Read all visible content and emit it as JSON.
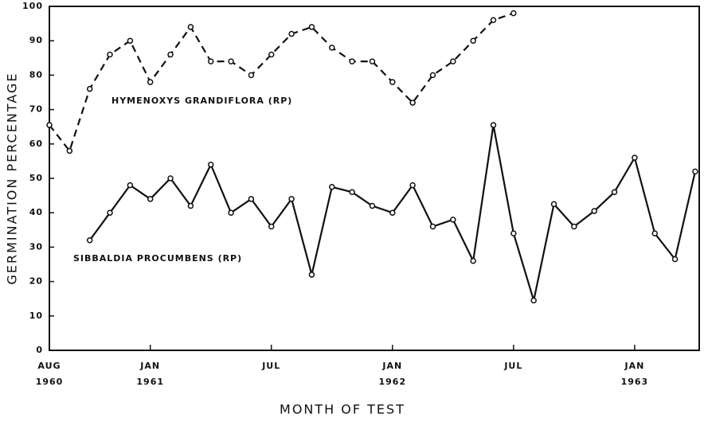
{
  "chart_data": {
    "type": "line",
    "y_label": "GERMINATION PERCENTAGE",
    "x_label": "MONTH OF TEST",
    "xlim": [
      0,
      32.2
    ],
    "ylim": [
      0,
      100
    ],
    "yticks": [
      0,
      10,
      20,
      30,
      40,
      50,
      60,
      70,
      80,
      90,
      100
    ],
    "xticks": [
      {
        "value": 0,
        "label": "AUG"
      },
      {
        "value": 5,
        "label": "JAN"
      },
      {
        "value": 11,
        "label": "JUL"
      },
      {
        "value": 17,
        "label": "JAN"
      },
      {
        "value": 23,
        "label": "JUL"
      },
      {
        "value": 29,
        "label": "JAN"
      }
    ],
    "year_labels": [
      {
        "value": 0,
        "label": "1960"
      },
      {
        "value": 5,
        "label": "1961"
      },
      {
        "value": 17,
        "label": "1962"
      },
      {
        "value": 29,
        "label": "1963"
      }
    ],
    "series": [
      {
        "name": "HYMENOXYS GRANDIFLORA (RP)",
        "color": "#111111",
        "dashed": true,
        "x": [
          0,
          1,
          2,
          3,
          4,
          5,
          6,
          7,
          8,
          9,
          10,
          11,
          12,
          13,
          14,
          15,
          16,
          17,
          18,
          19,
          20,
          21,
          22,
          23
        ],
        "values": [
          65.5,
          58,
          76,
          86,
          90,
          78,
          86,
          94,
          84,
          84,
          80,
          86,
          92,
          94,
          88,
          84,
          84,
          78,
          72,
          80,
          84,
          90,
          96,
          98
        ]
      },
      {
        "name": "SIBBALDIA PROCUMBENS (RP)",
        "color": "#111111",
        "dashed": false,
        "x": [
          2,
          3,
          4,
          5,
          6,
          7,
          8,
          9,
          10,
          11,
          12,
          13,
          14,
          15,
          16,
          17,
          18,
          19,
          20,
          21,
          22,
          23,
          24,
          25,
          26,
          27,
          28,
          29,
          30,
          31,
          32
        ],
        "values": [
          32,
          40,
          48,
          44,
          50,
          42,
          54,
          40,
          44,
          36,
          44,
          22,
          47.5,
          46,
          42,
          40,
          48,
          36,
          38,
          26,
          65.5,
          34,
          14.5,
          42.5,
          36,
          40.5,
          46,
          56,
          34,
          26.5,
          52
        ]
      }
    ]
  }
}
